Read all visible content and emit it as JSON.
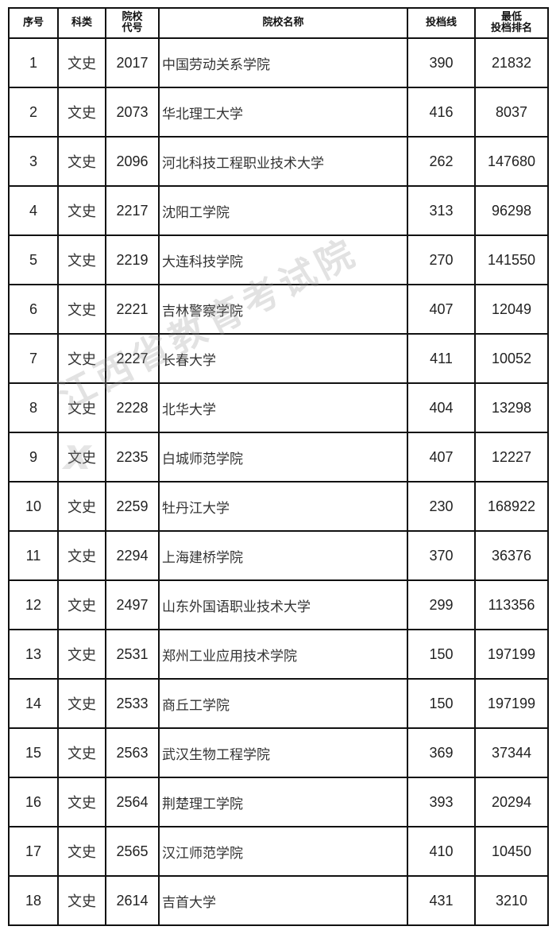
{
  "headers": {
    "seq": "序号",
    "category": "科类",
    "code_line1": "院校",
    "code_line2": "代号",
    "name": "院校名称",
    "score": "投档线",
    "rank_line1": "最低",
    "rank_line2": "投档排名"
  },
  "rows": [
    {
      "seq": "1",
      "category": "文史",
      "code": "2017",
      "name": "中国劳动关系学院",
      "score": "390",
      "rank": "21832"
    },
    {
      "seq": "2",
      "category": "文史",
      "code": "2073",
      "name": "华北理工大学",
      "score": "416",
      "rank": "8037"
    },
    {
      "seq": "3",
      "category": "文史",
      "code": "2096",
      "name": "河北科技工程职业技术大学",
      "score": "262",
      "rank": "147680"
    },
    {
      "seq": "4",
      "category": "文史",
      "code": "2217",
      "name": "沈阳工学院",
      "score": "313",
      "rank": "96298"
    },
    {
      "seq": "5",
      "category": "文史",
      "code": "2219",
      "name": "大连科技学院",
      "score": "270",
      "rank": "141550"
    },
    {
      "seq": "6",
      "category": "文史",
      "code": "2221",
      "name": "吉林警察学院",
      "score": "407",
      "rank": "12049"
    },
    {
      "seq": "7",
      "category": "文史",
      "code": "2227",
      "name": "长春大学",
      "score": "411",
      "rank": "10052"
    },
    {
      "seq": "8",
      "category": "文史",
      "code": "2228",
      "name": "北华大学",
      "score": "404",
      "rank": "13298"
    },
    {
      "seq": "9",
      "category": "文史",
      "code": "2235",
      "name": "白城师范学院",
      "score": "407",
      "rank": "12227"
    },
    {
      "seq": "10",
      "category": "文史",
      "code": "2259",
      "name": "牡丹江大学",
      "score": "230",
      "rank": "168922"
    },
    {
      "seq": "11",
      "category": "文史",
      "code": "2294",
      "name": "上海建桥学院",
      "score": "370",
      "rank": "36376"
    },
    {
      "seq": "12",
      "category": "文史",
      "code": "2497",
      "name": "山东外国语职业技术大学",
      "score": "299",
      "rank": "113356"
    },
    {
      "seq": "13",
      "category": "文史",
      "code": "2531",
      "name": "郑州工业应用技术学院",
      "score": "150",
      "rank": "197199"
    },
    {
      "seq": "14",
      "category": "文史",
      "code": "2533",
      "name": "商丘工学院",
      "score": "150",
      "rank": "197199"
    },
    {
      "seq": "15",
      "category": "文史",
      "code": "2563",
      "name": "武汉生物工程学院",
      "score": "369",
      "rank": "37344"
    },
    {
      "seq": "16",
      "category": "文史",
      "code": "2564",
      "name": "荆楚理工学院",
      "score": "393",
      "rank": "20294"
    },
    {
      "seq": "17",
      "category": "文史",
      "code": "2565",
      "name": "汉江师范学院",
      "score": "410",
      "rank": "10450"
    },
    {
      "seq": "18",
      "category": "文史",
      "code": "2614",
      "name": "吉首大学",
      "score": "431",
      "rank": "3210"
    }
  ],
  "watermark": "江西省教育考试院"
}
